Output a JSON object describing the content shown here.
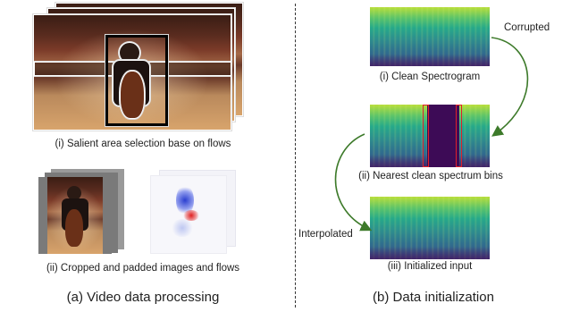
{
  "left_panel": {
    "caption_i": "(i) Salient area selection base on flows",
    "caption_ii": "(ii) Cropped and padded images and flows",
    "title": "(a) Video data processing"
  },
  "right_panel": {
    "caption_i": "(i) Clean Spectrogram",
    "caption_ii": "(ii) Nearest clean spectrum bins",
    "caption_iii": "(iii) Initialized input",
    "title": "(b) Data initialization",
    "arrow_top_label": "Corrupted",
    "arrow_bottom_label": "Interpolated"
  },
  "colors": {
    "box_outline": "#000000",
    "bin_highlight": "#e0202a",
    "masked_region": "#3d0b56",
    "arrow": "#3d7a2a"
  }
}
